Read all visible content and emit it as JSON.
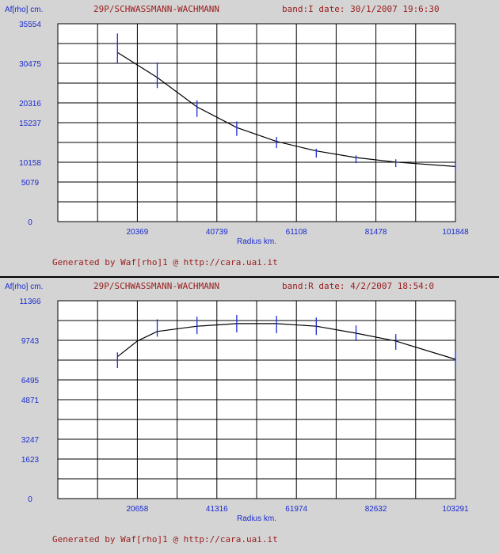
{
  "charts": [
    {
      "ylabel": "Af[rho] cm.",
      "object_name": "29P/SCHWASSMANN-WACHMANN",
      "band_date": "band:I  date: 30/1/2007  19:6:30",
      "xlabel": "Radius km.",
      "footer": "Generated by Waf[rho]1 @ http://cara.uai.it",
      "y_ticks": [
        "35554",
        "30475",
        "20316",
        "15237",
        "10158",
        "5079",
        "0"
      ],
      "x_ticks": [
        "20369",
        "40739",
        "61108",
        "81478",
        "101848"
      ]
    },
    {
      "ylabel": "Af[rho] cm.",
      "object_name": "29P/SCHWASSMANN-WACHMANN",
      "band_date": "band:R  date: 4/2/2007  18:54:0",
      "xlabel": "Radius km.",
      "footer": "Generated by Waf[rho]1 @ http://cara.uai.it",
      "y_ticks": [
        "11366",
        "9743",
        "6495",
        "4871",
        "3247",
        "1623",
        "0"
      ],
      "x_ticks": [
        "20658",
        "41316",
        "61974",
        "82632",
        "103291"
      ]
    }
  ],
  "chart_data": [
    {
      "type": "scatter",
      "title": "29P/SCHWASSMANN-WACHMANN  band:I  date: 30/1/2007  19:6:30",
      "xlabel": "Radius km.",
      "ylabel": "Af[rho] cm.",
      "xlim": [
        0,
        101848
      ],
      "ylim": [
        0,
        35554
      ],
      "grid": true,
      "points": [
        {
          "x": 15277,
          "y": 31100,
          "err": 2700
        },
        {
          "x": 25462,
          "y": 26300,
          "err": 2300
        },
        {
          "x": 35647,
          "y": 20300,
          "err": 1500
        },
        {
          "x": 45832,
          "y": 16700,
          "err": 1300
        },
        {
          "x": 56016,
          "y": 14200,
          "err": 1000
        },
        {
          "x": 66201,
          "y": 12300,
          "err": 800
        },
        {
          "x": 76386,
          "y": 11200,
          "err": 700
        },
        {
          "x": 86571,
          "y": 10500,
          "err": 700
        },
        {
          "x": 101848,
          "y": 9700,
          "err": 700
        }
      ],
      "fit": [
        {
          "x": 15277,
          "y": 30400
        },
        {
          "x": 25462,
          "y": 25900
        },
        {
          "x": 35647,
          "y": 20600
        },
        {
          "x": 45832,
          "y": 16900
        },
        {
          "x": 56016,
          "y": 14400
        },
        {
          "x": 66201,
          "y": 12700
        },
        {
          "x": 76386,
          "y": 11500
        },
        {
          "x": 86571,
          "y": 10700
        },
        {
          "x": 101848,
          "y": 9900
        }
      ]
    },
    {
      "type": "scatter",
      "title": "29P/SCHWASSMANN-WACHMANN  band:R  date: 4/2/2007  18:54:0",
      "xlabel": "Radius km.",
      "ylabel": "Af[rho] cm.",
      "xlim": [
        0,
        103291
      ],
      "ylim": [
        0,
        11366
      ],
      "grid": true,
      "points": [
        {
          "x": 15494,
          "y": 7950,
          "err": 450
        },
        {
          "x": 25823,
          "y": 9800,
          "err": 500
        },
        {
          "x": 36152,
          "y": 9950,
          "err": 500
        },
        {
          "x": 46481,
          "y": 10050,
          "err": 500
        },
        {
          "x": 56810,
          "y": 10000,
          "err": 500
        },
        {
          "x": 67139,
          "y": 9900,
          "err": 500
        },
        {
          "x": 77468,
          "y": 9500,
          "err": 450
        },
        {
          "x": 87797,
          "y": 9000,
          "err": 450
        },
        {
          "x": 103291,
          "y": 8000,
          "err": 400
        }
      ],
      "fit": [
        {
          "x": 15494,
          "y": 8150
        },
        {
          "x": 20658,
          "y": 9050
        },
        {
          "x": 25823,
          "y": 9600
        },
        {
          "x": 36152,
          "y": 9900
        },
        {
          "x": 46481,
          "y": 10050
        },
        {
          "x": 56810,
          "y": 10050
        },
        {
          "x": 67139,
          "y": 9900
        },
        {
          "x": 77468,
          "y": 9500
        },
        {
          "x": 87797,
          "y": 9050
        },
        {
          "x": 103291,
          "y": 8000
        }
      ]
    }
  ],
  "colors": {
    "background": "#d4d4d4",
    "plot_area": "#ffffff",
    "grid": "#000000",
    "error_bar": "#1a2bd0",
    "fit_line": "#000000",
    "title_text": "#9b1c1c",
    "axis_text": "#1a2bd0"
  }
}
